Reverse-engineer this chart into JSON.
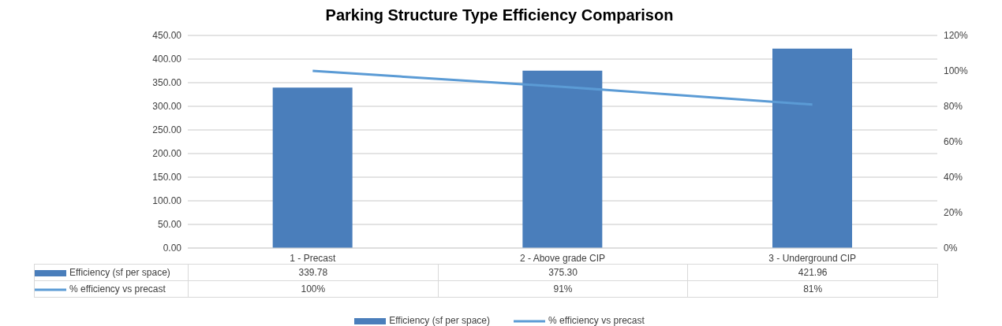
{
  "chart_data": {
    "type": "bar",
    "title": "Parking Structure Type Efficiency Comparison",
    "categories": [
      "1 - Precast",
      "2 - Above grade CIP",
      "3 - Underground CIP"
    ],
    "series": [
      {
        "name": "Efficiency (sf per space)",
        "color": "#4a7ebb",
        "values": [
          339.78,
          375.3,
          421.96
        ],
        "value_labels": [
          "339.78",
          "375.30",
          "421.96"
        ]
      },
      {
        "name": "% efficiency vs precast",
        "type": "line",
        "axis": "y2",
        "color": "#5b9bd5",
        "values": [
          100,
          91,
          81
        ],
        "value_labels": [
          "100%",
          "91%",
          "81%"
        ]
      }
    ],
    "ylim": [
      0,
      450
    ],
    "yticks": [
      {
        "value": 0,
        "label": "0.00"
      },
      {
        "value": 50,
        "label": "50.00"
      },
      {
        "value": 100,
        "label": "100.00"
      },
      {
        "value": 150,
        "label": "150.00"
      },
      {
        "value": 200,
        "label": "200.00"
      },
      {
        "value": 250,
        "label": "250.00"
      },
      {
        "value": 300,
        "label": "300.00"
      },
      {
        "value": 350,
        "label": "350.00"
      },
      {
        "value": 400,
        "label": "400.00"
      },
      {
        "value": 450,
        "label": "450.00"
      }
    ],
    "y2lim": [
      0,
      120
    ],
    "y2ticks": [
      {
        "value": 0,
        "label": "0%"
      },
      {
        "value": 20,
        "label": "20%"
      },
      {
        "value": 40,
        "label": "40%"
      },
      {
        "value": 60,
        "label": "60%"
      },
      {
        "value": 80,
        "label": "80%"
      },
      {
        "value": 100,
        "label": "100%"
      },
      {
        "value": 120,
        "label": "120%"
      }
    ],
    "grid": "y",
    "legend": "bottom",
    "marker": "none",
    "line_style": "solid"
  }
}
